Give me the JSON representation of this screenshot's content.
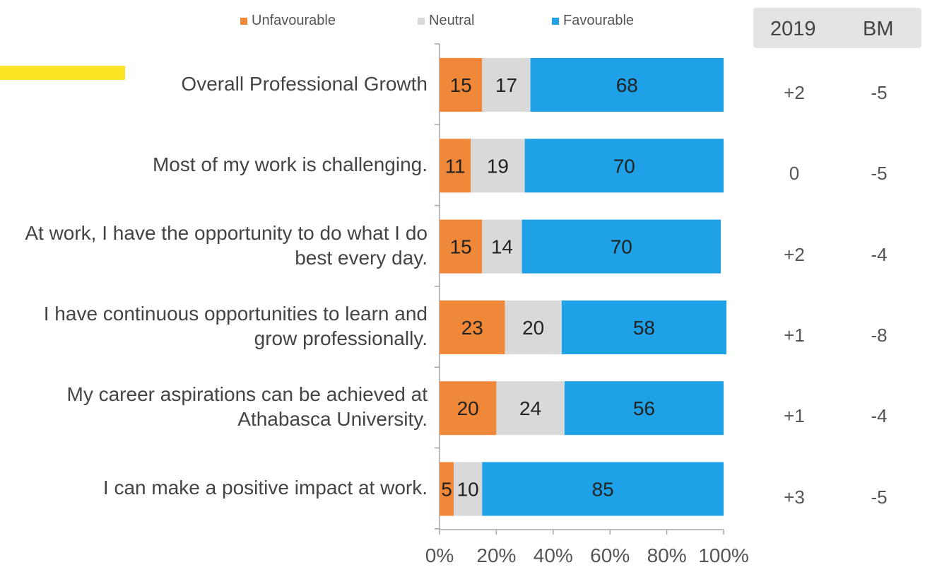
{
  "legend": {
    "unfavourable": "Unfavourable",
    "neutral": "Neutral",
    "favourable": "Favourable"
  },
  "comparison_headers": {
    "year": "2019",
    "benchmark": "BM"
  },
  "colors": {
    "unfavourable": "#f0883a",
    "neutral": "#d9d9d9",
    "favourable": "#1ea1e6",
    "highlight": "#fbe524"
  },
  "rows": [
    {
      "label": "Overall Professional Growth",
      "unfavourable": 15,
      "neutral": 17,
      "favourable": 68,
      "vs_2019": "+2",
      "vs_bm": "-5"
    },
    {
      "label": "Most of my work is challenging.",
      "unfavourable": 11,
      "neutral": 19,
      "favourable": 70,
      "vs_2019": "0",
      "vs_bm": "-5"
    },
    {
      "label": "At work, I have the opportunity to do what I do best every day.",
      "unfavourable": 15,
      "neutral": 14,
      "favourable": 70,
      "vs_2019": "+2",
      "vs_bm": "-4"
    },
    {
      "label": "I have continuous opportunities to learn and grow professionally.",
      "unfavourable": 23,
      "neutral": 20,
      "favourable": 58,
      "vs_2019": "+1",
      "vs_bm": "-8"
    },
    {
      "label": "My career aspirations can be achieved at Athabasca University.",
      "unfavourable": 20,
      "neutral": 24,
      "favourable": 56,
      "vs_2019": "+1",
      "vs_bm": "-4"
    },
    {
      "label": "I can make a positive impact at work.",
      "unfavourable": 5,
      "neutral": 10,
      "favourable": 85,
      "vs_2019": "+3",
      "vs_bm": "-5"
    }
  ],
  "chart_data": {
    "type": "bar",
    "orientation": "horizontal",
    "stacked": true,
    "categories": [
      "Overall Professional Growth",
      "Most of my work is challenging.",
      "At work, I have the opportunity to do what I do best every day.",
      "I have continuous opportunities to learn and grow professionally.",
      "My career aspirations can be achieved at Athabasca University.",
      "I can make a positive impact at work."
    ],
    "series": [
      {
        "name": "Unfavourable",
        "values": [
          15,
          11,
          15,
          23,
          20,
          5
        ]
      },
      {
        "name": "Neutral",
        "values": [
          17,
          19,
          14,
          20,
          24,
          10
        ]
      },
      {
        "name": "Favourable",
        "values": [
          68,
          70,
          70,
          58,
          56,
          85
        ]
      }
    ],
    "xlim": [
      0,
      100
    ],
    "xticks": [
      "0%",
      "20%",
      "40%",
      "60%",
      "80%",
      "100%"
    ],
    "legend_position": "top"
  }
}
